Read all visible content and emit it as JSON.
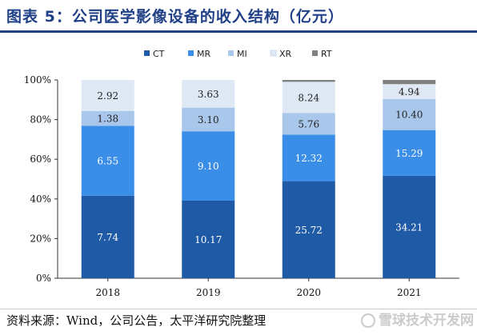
{
  "title": "图表 5：公司医学影像设备的收入结构（亿元）",
  "source": "资料来源：Wind，公司公告，太平洋研究院整理",
  "watermark": "雪球技术开发网",
  "chart_data": {
    "type": "bar",
    "stacked": true,
    "normalized": true,
    "categories": [
      "2018",
      "2019",
      "2020",
      "2021"
    ],
    "series": [
      {
        "name": "CT",
        "color": "#1f5aa6",
        "values": [
          7.74,
          10.17,
          25.72,
          34.21
        ],
        "labels": [
          "7.74",
          "10.17",
          "25.72",
          "34.21"
        ]
      },
      {
        "name": "MR",
        "color": "#3a8ee8",
        "values": [
          6.55,
          9.1,
          12.32,
          15.29
        ],
        "labels": [
          "6.55",
          "9.10",
          "12.32",
          "15.29"
        ]
      },
      {
        "name": "MI",
        "color": "#a9c7ea",
        "values": [
          1.38,
          3.1,
          5.76,
          10.4
        ],
        "labels": [
          "1.38",
          "3.10",
          "5.76",
          "10.40"
        ]
      },
      {
        "name": "XR",
        "color": "#dfe9f5",
        "values": [
          2.92,
          3.63,
          8.24,
          4.94
        ],
        "labels": [
          "2.92",
          "3.63",
          "8.24",
          "4.94"
        ]
      },
      {
        "name": "RT",
        "color": "#808080",
        "values": [
          0.0,
          0.0,
          0.5,
          1.4
        ],
        "labels": [
          "",
          "",
          "",
          ""
        ]
      }
    ],
    "y_ticks": [
      "0%",
      "20%",
      "40%",
      "60%",
      "80%",
      "100%"
    ],
    "ylim": [
      0,
      100
    ],
    "grid": false,
    "legend_position": "top"
  }
}
